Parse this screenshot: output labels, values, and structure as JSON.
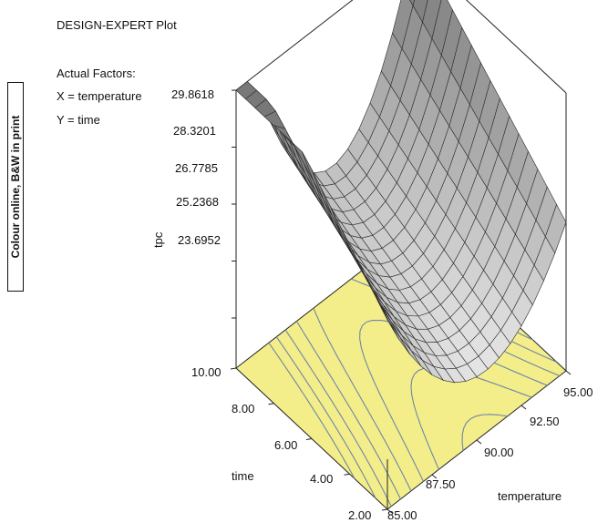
{
  "header": {
    "title": "DESIGN-EXPERT Plot",
    "factors_heading": "Actual Factors:",
    "x_factor": "X = temperature",
    "y_factor": "Y = time"
  },
  "side_note": "Colour online, B&W in print",
  "colors": {
    "contour_fill": "#f3ee8a",
    "contour_line": "#6f85a8",
    "surface_light": "#f2f2f2",
    "surface_dark": "#808080",
    "mesh": "#2a2a2a"
  },
  "chart_data": {
    "type": "surface",
    "zlabel": "tpc",
    "xlabel": "temperature",
    "ylabel": "time",
    "z_ticks": [
      "29.8618",
      "28.3201",
      "26.7785",
      "25.2368",
      "23.6952"
    ],
    "x_ticks": [
      "85.00",
      "87.50",
      "90.00",
      "92.50",
      "95.00"
    ],
    "y_ticks": [
      "2.00",
      "4.00",
      "6.00",
      "8.00",
      "10.00"
    ],
    "x_range": [
      85,
      95
    ],
    "y_range": [
      2,
      10
    ],
    "z_range": [
      23.6952,
      29.8618
    ],
    "grid_resolution": 16,
    "contour_floor": true
  }
}
